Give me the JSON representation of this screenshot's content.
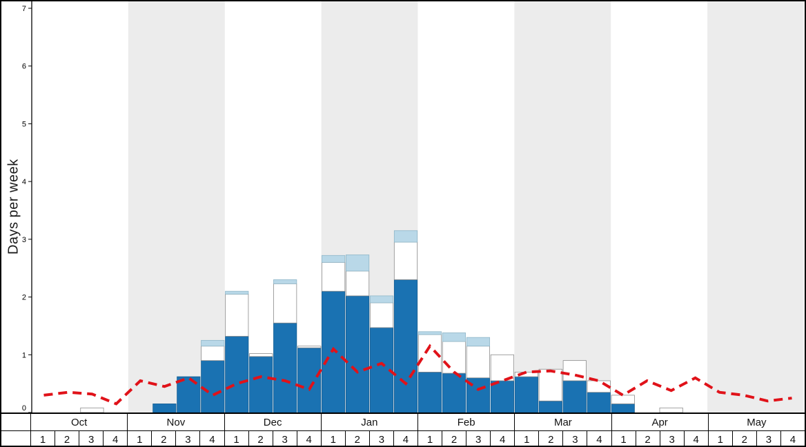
{
  "figure": {
    "ylabel": "Days per week"
  },
  "chart_data": {
    "type": "bar",
    "title": "",
    "xlabel": "",
    "ylabel": "Days per week",
    "ylim": [
      0,
      7
    ],
    "yticks": [
      0,
      1,
      2,
      3,
      4,
      5,
      6,
      7
    ],
    "grid": false,
    "legend": "none",
    "months": [
      "Oct",
      "Nov",
      "Dec",
      "Jan",
      "Feb",
      "Mar",
      "Apr",
      "May"
    ],
    "week_labels": [
      "1",
      "2",
      "3",
      "4"
    ],
    "shaded_months": [
      "Nov",
      "Jan",
      "Mar",
      "May"
    ],
    "colors": {
      "dark_blue_segment": "#1a72b2",
      "white_segment": "#ffffff",
      "light_blue_segment": "#b9d8e8",
      "average_line": "#e01219",
      "month_band": "#ececec"
    },
    "series": [
      {
        "name": "dark-blue-segment",
        "color": "#1a72b2",
        "stroke": "#155e93",
        "values": [
          0,
          0,
          0,
          0,
          0,
          0.15,
          0.62,
          0.9,
          1.32,
          0.97,
          1.55,
          1.12,
          2.1,
          2.02,
          1.47,
          2.3,
          0.7,
          0.68,
          0.6,
          0.55,
          0.62,
          0.2,
          0.55,
          0.35,
          0.15,
          0,
          0,
          0,
          0,
          0,
          0,
          0
        ]
      },
      {
        "name": "white-segment",
        "color": "#ffffff",
        "stroke": "#8a8a8a",
        "values": [
          0,
          0,
          0.08,
          0,
          0,
          0,
          0,
          0.25,
          0.73,
          0.05,
          0.68,
          0.03,
          0.5,
          0.43,
          0.43,
          0.65,
          0.65,
          0.55,
          0.55,
          0.45,
          0.08,
          0.55,
          0.35,
          0.2,
          0.15,
          0,
          0.08,
          0,
          0,
          0,
          0,
          0
        ]
      },
      {
        "name": "light-blue-segment",
        "color": "#b9d8e8",
        "stroke": "#8fb6c8",
        "values": [
          0,
          0,
          0,
          0,
          0,
          0,
          0,
          0.1,
          0.05,
          0,
          0.07,
          0,
          0.12,
          0.28,
          0.12,
          0.2,
          0.05,
          0.15,
          0.15,
          0,
          0,
          0,
          0,
          0,
          0,
          0,
          0,
          0,
          0,
          0,
          0,
          0
        ]
      }
    ],
    "line": {
      "name": "average-line",
      "color": "#e01219",
      "style": "dashed",
      "values": [
        0.3,
        0.35,
        0.32,
        0.15,
        0.55,
        0.45,
        0.6,
        0.3,
        0.5,
        0.62,
        0.55,
        0.4,
        1.1,
        0.7,
        0.85,
        0.5,
        1.15,
        0.7,
        0.4,
        0.55,
        0.7,
        0.72,
        0.65,
        0.55,
        0.3,
        0.55,
        0.38,
        0.6,
        0.35,
        0.3,
        0.2,
        0.25
      ]
    }
  }
}
